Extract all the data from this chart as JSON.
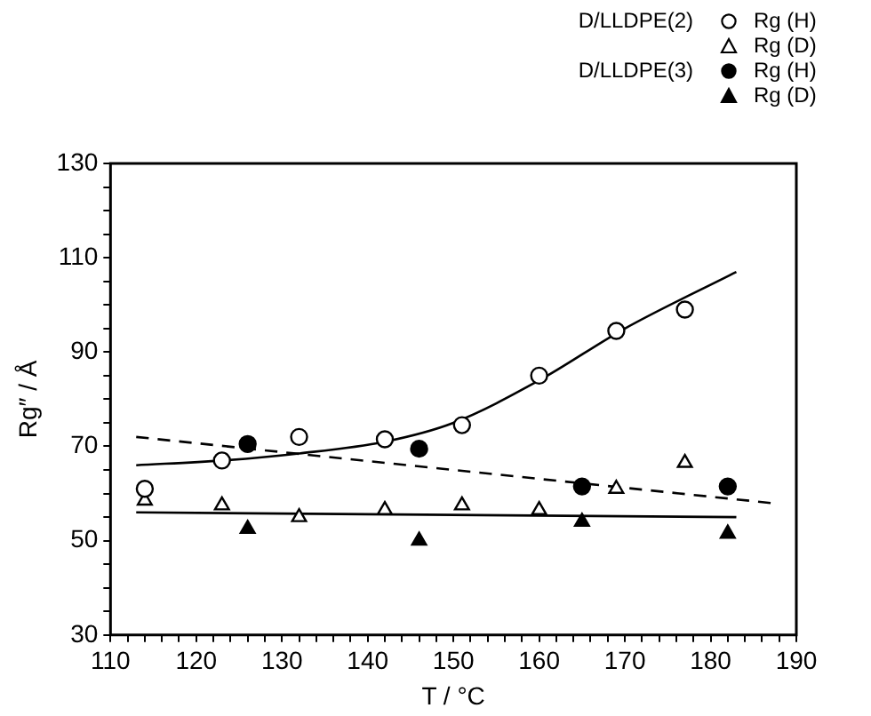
{
  "chart_data": {
    "type": "scatter",
    "xlabel": "T / °C",
    "ylabel": "Rg″ / Å",
    "xlim": [
      110,
      190
    ],
    "ylim": [
      30,
      130
    ],
    "xticks": [
      110,
      {
        "value": 112,
        "label": null
      },
      {
        "value": 114,
        "label": null
      },
      {
        "value": 116,
        "label": null
      },
      {
        "value": 118,
        "label": null
      },
      120,
      {
        "value": 122,
        "label": null
      },
      {
        "value": 124,
        "label": null
      },
      {
        "value": 126,
        "label": null
      },
      {
        "value": 128,
        "label": null
      },
      130,
      {
        "value": 132,
        "label": null
      },
      {
        "value": 134,
        "label": null
      },
      {
        "value": 136,
        "label": null
      },
      {
        "value": 138,
        "label": null
      },
      140,
      {
        "value": 142,
        "label": null
      },
      {
        "value": 144,
        "label": null
      },
      {
        "value": 146,
        "label": null
      },
      {
        "value": 148,
        "label": null
      },
      150,
      {
        "value": 152,
        "label": null
      },
      {
        "value": 154,
        "label": null
      },
      {
        "value": 156,
        "label": null
      },
      {
        "value": 158,
        "label": null
      },
      160,
      {
        "value": 162,
        "label": null
      },
      {
        "value": 164,
        "label": null
      },
      {
        "value": 166,
        "label": null
      },
      {
        "value": 168,
        "label": null
      },
      170,
      {
        "value": 172,
        "label": null
      },
      {
        "value": 174,
        "label": null
      },
      {
        "value": 176,
        "label": null
      },
      {
        "value": 178,
        "label": null
      },
      180,
      {
        "value": 182,
        "label": null
      },
      {
        "value": 184,
        "label": null
      },
      {
        "value": 186,
        "label": null
      },
      {
        "value": 188,
        "label": null
      },
      190
    ],
    "yticks": [
      30,
      {
        "value": 35,
        "label": null
      },
      {
        "value": 40,
        "label": null
      },
      {
        "value": 45,
        "label": null
      },
      50,
      {
        "value": 55,
        "label": null
      },
      {
        "value": 60,
        "label": null
      },
      {
        "value": 65,
        "label": null
      },
      70,
      {
        "value": 75,
        "label": null
      },
      {
        "value": 80,
        "label": null
      },
      {
        "value": 85,
        "label": null
      },
      90,
      {
        "value": 95,
        "label": null
      },
      {
        "value": 100,
        "label": null
      },
      {
        "value": 105,
        "label": null
      },
      110,
      {
        "value": 115,
        "label": null
      },
      {
        "value": 120,
        "label": null
      },
      {
        "value": 125,
        "label": null
      },
      130
    ],
    "grid": false,
    "legend": "top right",
    "annotations": [
      "D/LLDPE(2)",
      "D/LLDPE(3)"
    ],
    "series": [
      {
        "name": "Rg (H)",
        "color": "#ffffff",
        "marker": "circle",
        "x": [
          114,
          123,
          132,
          142,
          151,
          160,
          169,
          177
        ],
        "values": [
          61,
          67,
          72,
          71.5,
          74.5,
          85,
          94.5,
          99
        ]
      },
      {
        "name": "Rg (D)",
        "color": "#ffffff",
        "marker": "triangle",
        "x": [
          114,
          123,
          132,
          142,
          151,
          160,
          169,
          177
        ],
        "values": [
          58.5,
          57.5,
          55,
          56.5,
          57.5,
          56.5,
          61,
          66.5
        ]
      },
      {
        "name": "Rg (H)",
        "color": "#000000",
        "marker": "circle",
        "x": [
          126,
          146,
          165,
          182
        ],
        "values": [
          70.5,
          69.5,
          61.5,
          61.5
        ]
      },
      {
        "name": "Rg (D)",
        "color": "#000000",
        "marker": "triangle",
        "x": [
          126,
          146,
          165,
          182
        ],
        "values": [
          52.5,
          50,
          54,
          51.5
        ]
      },
      {
        "type": "line",
        "color": "#000000",
        "marker": "none",
        "line_style": "solid",
        "x": [
          113,
          123,
          132,
          142,
          150,
          160,
          170,
          183
        ],
        "values": [
          66,
          67,
          68.5,
          71,
          75,
          84,
          95,
          107
        ]
      },
      {
        "type": "line",
        "color": "#000000",
        "marker": "none",
        "line_style": "dashed",
        "x": [
          113,
          187
        ],
        "values": [
          72,
          58
        ]
      },
      {
        "type": "line",
        "color": "#000000",
        "marker": "none",
        "line_style": "solid",
        "x": [
          113,
          183
        ],
        "values": [
          56,
          55
        ]
      }
    ]
  }
}
